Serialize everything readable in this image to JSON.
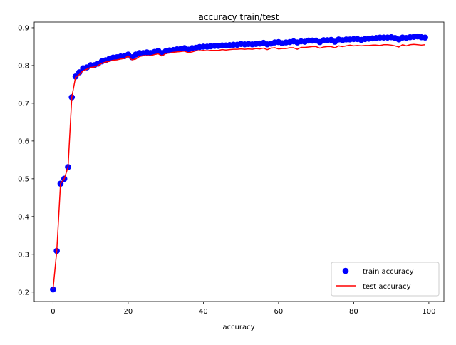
{
  "chart_data": {
    "type": "line",
    "title": "accuracy train/test",
    "xlabel": "accuracy",
    "ylabel": "",
    "xlim": [
      -5,
      104
    ],
    "ylim": [
      0.175,
      0.915
    ],
    "xticks": [
      0,
      20,
      40,
      60,
      80,
      100
    ],
    "yticks": [
      0.2,
      0.3,
      0.4,
      0.5,
      0.6,
      0.7,
      0.8,
      0.9
    ],
    "grid": false,
    "legend": {
      "placement": "lower-right"
    },
    "series": [
      {
        "name": "train accuracy",
        "style": "markers",
        "color": "#0000ff",
        "x": [
          0,
          1,
          2,
          3,
          4,
          5,
          6,
          7,
          8,
          9,
          10,
          11,
          12,
          13,
          14,
          15,
          16,
          17,
          18,
          19,
          20,
          21,
          22,
          23,
          24,
          25,
          26,
          27,
          28,
          29,
          30,
          31,
          32,
          33,
          34,
          35,
          36,
          37,
          38,
          39,
          40,
          41,
          42,
          43,
          44,
          45,
          46,
          47,
          48,
          49,
          50,
          51,
          52,
          53,
          54,
          55,
          56,
          57,
          58,
          59,
          60,
          61,
          62,
          63,
          64,
          65,
          66,
          67,
          68,
          69,
          70,
          71,
          72,
          73,
          74,
          75,
          76,
          77,
          78,
          79,
          80,
          81,
          82,
          83,
          84,
          85,
          86,
          87,
          88,
          89,
          90,
          91,
          92,
          93,
          94,
          95,
          96,
          97,
          98,
          99
        ],
        "y": [
          0.207,
          0.309,
          0.487,
          0.5,
          0.531,
          0.716,
          0.771,
          0.782,
          0.793,
          0.795,
          0.801,
          0.801,
          0.805,
          0.811,
          0.814,
          0.818,
          0.821,
          0.822,
          0.824,
          0.825,
          0.829,
          0.822,
          0.829,
          0.833,
          0.833,
          0.835,
          0.833,
          0.836,
          0.839,
          0.833,
          0.838,
          0.84,
          0.841,
          0.843,
          0.844,
          0.846,
          0.842,
          0.846,
          0.847,
          0.849,
          0.85,
          0.85,
          0.851,
          0.852,
          0.852,
          0.853,
          0.853,
          0.854,
          0.855,
          0.855,
          0.857,
          0.856,
          0.857,
          0.856,
          0.857,
          0.858,
          0.86,
          0.856,
          0.858,
          0.861,
          0.862,
          0.859,
          0.861,
          0.862,
          0.864,
          0.861,
          0.864,
          0.863,
          0.866,
          0.866,
          0.866,
          0.862,
          0.867,
          0.867,
          0.868,
          0.863,
          0.869,
          0.867,
          0.869,
          0.869,
          0.87,
          0.87,
          0.868,
          0.87,
          0.871,
          0.872,
          0.873,
          0.874,
          0.874,
          0.874,
          0.875,
          0.873,
          0.869,
          0.874,
          0.873,
          0.875,
          0.876,
          0.877,
          0.875,
          0.874
        ]
      },
      {
        "name": "test accuracy",
        "style": "line",
        "color": "#ff0000",
        "x": [
          0,
          1,
          2,
          3,
          4,
          5,
          6,
          7,
          8,
          9,
          10,
          11,
          12,
          13,
          14,
          15,
          16,
          17,
          18,
          19,
          20,
          21,
          22,
          23,
          24,
          25,
          26,
          27,
          28,
          29,
          30,
          31,
          32,
          33,
          34,
          35,
          36,
          37,
          38,
          39,
          40,
          41,
          42,
          43,
          44,
          45,
          46,
          47,
          48,
          49,
          50,
          51,
          52,
          53,
          54,
          55,
          56,
          57,
          58,
          59,
          60,
          61,
          62,
          63,
          64,
          65,
          66,
          67,
          68,
          69,
          70,
          71,
          72,
          73,
          74,
          75,
          76,
          77,
          78,
          79,
          80,
          81,
          82,
          83,
          84,
          85,
          86,
          87,
          88,
          89,
          90,
          91,
          92,
          93,
          94,
          95,
          96,
          97,
          98,
          99
        ],
        "y": [
          0.207,
          0.309,
          0.487,
          0.5,
          0.531,
          0.716,
          0.769,
          0.776,
          0.786,
          0.79,
          0.795,
          0.796,
          0.8,
          0.806,
          0.809,
          0.811,
          0.814,
          0.815,
          0.817,
          0.819,
          0.825,
          0.815,
          0.817,
          0.824,
          0.826,
          0.826,
          0.826,
          0.829,
          0.831,
          0.825,
          0.832,
          0.833,
          0.835,
          0.836,
          0.837,
          0.838,
          0.834,
          0.836,
          0.839,
          0.839,
          0.84,
          0.839,
          0.84,
          0.84,
          0.84,
          0.842,
          0.841,
          0.842,
          0.843,
          0.843,
          0.844,
          0.843,
          0.844,
          0.843,
          0.845,
          0.844,
          0.846,
          0.842,
          0.846,
          0.847,
          0.844,
          0.845,
          0.845,
          0.847,
          0.847,
          0.843,
          0.848,
          0.848,
          0.849,
          0.85,
          0.85,
          0.846,
          0.849,
          0.85,
          0.85,
          0.847,
          0.852,
          0.85,
          0.852,
          0.854,
          0.852,
          0.853,
          0.852,
          0.853,
          0.853,
          0.854,
          0.854,
          0.853,
          0.855,
          0.855,
          0.854,
          0.852,
          0.849,
          0.855,
          0.852,
          0.855,
          0.856,
          0.855,
          0.854,
          0.855
        ]
      }
    ]
  }
}
